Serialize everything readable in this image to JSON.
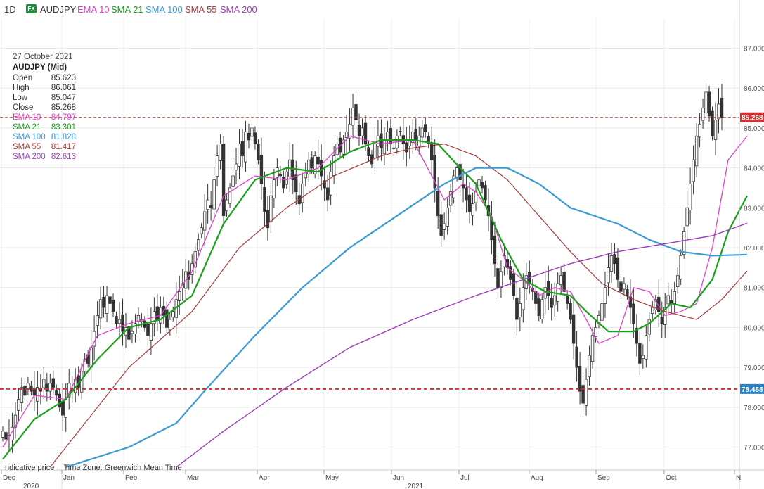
{
  "toolbar": {
    "timeframe": "1D",
    "fx_badge": "FX",
    "symbol": "AUDJPY",
    "indicators": [
      {
        "label": "EMA 10",
        "color": "#e040c8"
      },
      {
        "label": "SMA 21",
        "color": "#1aa01a"
      },
      {
        "label": "SMA 100",
        "color": "#3a9ad4"
      },
      {
        "label": "SMA 55",
        "color": "#a83a3a"
      },
      {
        "label": "SMA 200",
        "color": "#9b3fb8"
      }
    ]
  },
  "info": {
    "date": "27 October 2021",
    "symbol": "AUDJPY (Mid)",
    "rows": [
      {
        "label": "Open",
        "value": "85.623",
        "color": "#333333"
      },
      {
        "label": "High",
        "value": "86.061",
        "color": "#333333"
      },
      {
        "label": "Low",
        "value": "85.047",
        "color": "#333333"
      },
      {
        "label": "Close",
        "value": "85.268",
        "color": "#333333"
      },
      {
        "label": "EMA 10",
        "value": "84.797",
        "color": "#e040c8"
      },
      {
        "label": "SMA 21",
        "value": "83.301",
        "color": "#1aa01a"
      },
      {
        "label": "SMA 100",
        "value": "81.828",
        "color": "#3a9ad4"
      },
      {
        "label": "SMA 55",
        "value": "81.417",
        "color": "#a83a3a"
      },
      {
        "label": "SMA 200",
        "value": "82.613",
        "color": "#9b3fb8"
      }
    ]
  },
  "footer": {
    "indicative": "Indicative price",
    "timezone": "Time Zone: Greenwich Mean Time"
  },
  "chart_data": {
    "type": "candlestick",
    "ylim": [
      76.5,
      87.2
    ],
    "y_ticks": [
      "87.000",
      "86.000",
      "85.000",
      "84.000",
      "83.000",
      "82.000",
      "81.000",
      "80.000",
      "79.000",
      "78.000",
      "77.000"
    ],
    "x_ticks": [
      "Dec",
      "Jan",
      "Feb",
      "Mar",
      "Apr",
      "May",
      "Jun",
      "Jul",
      "Aug",
      "Sep",
      "Oct",
      "N"
    ],
    "year_labels": [
      "2020",
      "2021"
    ],
    "grid": true,
    "reference_lines": [
      {
        "value": 85.268,
        "label": "85.268",
        "color": "#d03030",
        "style": "dashed"
      },
      {
        "value": 78.458,
        "label": "78.458",
        "color": "#2a82c0",
        "style": "dashed"
      }
    ],
    "closes": [
      77.4,
      77.2,
      77.3,
      77.5,
      77.8,
      78.2,
      78.5,
      78.3,
      78.6,
      78.4,
      78.3,
      78.5,
      78.4,
      78.7,
      78.4,
      78.6,
      78.5,
      78.3,
      78.0,
      77.8,
      78.2,
      78.6,
      78.4,
      78.7,
      78.5,
      78.9,
      79.2,
      79.1,
      79.5,
      79.9,
      80.3,
      80.7,
      80.5,
      80.8,
      80.6,
      80.4,
      80.1,
      80.2,
      79.9,
      80.0,
      79.7,
      79.9,
      80.1,
      80.3,
      80.2,
      80.0,
      79.8,
      80.1,
      80.4,
      80.2,
      80.5,
      80.3,
      80.0,
      80.2,
      80.4,
      80.7,
      80.9,
      81.1,
      81.4,
      81.2,
      81.6,
      81.9,
      82.2,
      82.5,
      82.9,
      83.2,
      83.0,
      83.7,
      84.3,
      84.6,
      82.8,
      83.2,
      83.5,
      83.8,
      84.1,
      84.6,
      84.3,
      84.9,
      84.7,
      85.0,
      84.6,
      84.2,
      83.6,
      82.9,
      82.5,
      83.3,
      83.7,
      84.0,
      83.8,
      83.5,
      83.9,
      84.2,
      83.7,
      83.4,
      83.1,
      83.6,
      83.9,
      84.2,
      84.0,
      84.3,
      84.1,
      83.8,
      83.5,
      83.2,
      83.9,
      84.3,
      84.6,
      84.4,
      84.7,
      84.9,
      85.1,
      85.5,
      85.2,
      84.8,
      85.0,
      84.6,
      84.3,
      84.1,
      84.6,
      84.8,
      84.5,
      84.7,
      84.9,
      84.6,
      84.5,
      84.8,
      84.9,
      84.6,
      84.4,
      84.7,
      84.9,
      84.7,
      84.8,
      85.0,
      84.9,
      84.6,
      84.2,
      83.5,
      82.8,
      82.3,
      82.6,
      83.0,
      83.4,
      83.8,
      84.0,
      83.7,
      83.5,
      83.2,
      82.9,
      83.1,
      83.4,
      83.7,
      83.5,
      83.2,
      82.8,
      82.2,
      81.6,
      81.0,
      81.4,
      81.8,
      81.5,
      81.2,
      80.8,
      80.2,
      80.6,
      81.0,
      81.3,
      81.1,
      80.9,
      80.6,
      80.3,
      80.7,
      81.0,
      80.8,
      80.5,
      80.8,
      81.1,
      81.3,
      80.9,
      80.6,
      80.2,
      79.6,
      79.0,
      78.4,
      78.1,
      78.7,
      79.3,
      79.8,
      80.0,
      80.3,
      80.6,
      81.0,
      81.5,
      81.8,
      81.6,
      81.2,
      80.9,
      81.1,
      80.8,
      80.5,
      80.1,
      79.6,
      79.1,
      79.3,
      79.8,
      80.2,
      80.5,
      80.7,
      80.4,
      80.1,
      80.5,
      80.8,
      80.6,
      80.9,
      81.3,
      81.8,
      82.4,
      83.0,
      83.6,
      84.2,
      84.8,
      85.1,
      85.5,
      85.9,
      85.3,
      84.8,
      85.2,
      85.6,
      85.268
    ],
    "series": [
      {
        "name": "EMA 10",
        "color": "#e040c8",
        "values": [
          [
            0,
            77.0
          ],
          [
            10,
            78.3
          ],
          [
            20,
            78.2
          ],
          [
            30,
            79.8
          ],
          [
            40,
            80.1
          ],
          [
            50,
            80.3
          ],
          [
            60,
            81.4
          ],
          [
            70,
            83.3
          ],
          [
            80,
            83.8
          ],
          [
            90,
            83.7
          ],
          [
            100,
            84.0
          ],
          [
            110,
            84.8
          ],
          [
            120,
            84.6
          ],
          [
            130,
            84.7
          ],
          [
            140,
            83.2
          ],
          [
            146,
            83.6
          ],
          [
            150,
            83.4
          ],
          [
            155,
            82.8
          ],
          [
            160,
            81.5
          ],
          [
            165,
            81.2
          ],
          [
            170,
            80.8
          ],
          [
            175,
            81.0
          ],
          [
            180,
            80.9
          ],
          [
            185,
            80.2
          ],
          [
            189,
            79.6
          ],
          [
            195,
            79.8
          ],
          [
            200,
            81.0
          ],
          [
            205,
            80.9
          ],
          [
            210,
            80.3
          ],
          [
            215,
            80.4
          ],
          [
            220,
            80.6
          ],
          [
            225,
            82.0
          ],
          [
            230,
            84.2
          ],
          [
            236,
            84.797
          ]
        ]
      },
      {
        "name": "SMA 21",
        "color": "#1aa01a",
        "values": [
          [
            0,
            76.7
          ],
          [
            10,
            77.7
          ],
          [
            20,
            78.2
          ],
          [
            30,
            79.2
          ],
          [
            40,
            80.0
          ],
          [
            50,
            80.2
          ],
          [
            60,
            80.8
          ],
          [
            70,
            82.6
          ],
          [
            80,
            83.7
          ],
          [
            90,
            84.0
          ],
          [
            100,
            83.9
          ],
          [
            110,
            84.4
          ],
          [
            120,
            84.7
          ],
          [
            130,
            84.7
          ],
          [
            138,
            84.6
          ],
          [
            145,
            84.0
          ],
          [
            150,
            83.6
          ],
          [
            158,
            82.2
          ],
          [
            165,
            81.2
          ],
          [
            172,
            80.9
          ],
          [
            180,
            80.8
          ],
          [
            185,
            80.4
          ],
          [
            192,
            79.9
          ],
          [
            200,
            79.9
          ],
          [
            205,
            80.1
          ],
          [
            212,
            80.6
          ],
          [
            218,
            80.5
          ],
          [
            225,
            81.2
          ],
          [
            230,
            82.4
          ],
          [
            236,
            83.301
          ]
        ]
      },
      {
        "name": "SMA 55",
        "color": "#a83a3a",
        "values": [
          [
            15,
            76.5
          ],
          [
            25,
            77.5
          ],
          [
            40,
            79.0
          ],
          [
            60,
            80.4
          ],
          [
            75,
            82.0
          ],
          [
            90,
            83.0
          ],
          [
            105,
            83.8
          ],
          [
            120,
            84.3
          ],
          [
            130,
            84.5
          ],
          [
            140,
            84.6
          ],
          [
            150,
            84.3
          ],
          [
            160,
            83.7
          ],
          [
            170,
            82.8
          ],
          [
            180,
            81.9
          ],
          [
            190,
            81.1
          ],
          [
            200,
            80.7
          ],
          [
            210,
            80.4
          ],
          [
            220,
            80.2
          ],
          [
            228,
            80.7
          ],
          [
            236,
            81.417
          ]
        ]
      },
      {
        "name": "SMA 100",
        "color": "#3a9ad4",
        "values": [
          [
            20,
            76.5
          ],
          [
            40,
            77.0
          ],
          [
            55,
            77.6
          ],
          [
            65,
            78.5
          ],
          [
            80,
            79.8
          ],
          [
            95,
            81.0
          ],
          [
            110,
            82.0
          ],
          [
            125,
            82.8
          ],
          [
            140,
            83.6
          ],
          [
            150,
            84.0
          ],
          [
            160,
            84.0
          ],
          [
            170,
            83.6
          ],
          [
            180,
            83.0
          ],
          [
            195,
            82.6
          ],
          [
            205,
            82.2
          ],
          [
            215,
            81.9
          ],
          [
            225,
            81.8
          ],
          [
            236,
            81.828
          ]
        ]
      },
      {
        "name": "SMA 200",
        "color": "#9b3fb8",
        "values": [
          [
            55,
            76.5
          ],
          [
            70,
            77.4
          ],
          [
            90,
            78.5
          ],
          [
            110,
            79.5
          ],
          [
            130,
            80.2
          ],
          [
            150,
            80.8
          ],
          [
            165,
            81.2
          ],
          [
            180,
            81.6
          ],
          [
            195,
            81.9
          ],
          [
            210,
            82.1
          ],
          [
            225,
            82.3
          ],
          [
            236,
            82.613
          ]
        ]
      }
    ]
  }
}
